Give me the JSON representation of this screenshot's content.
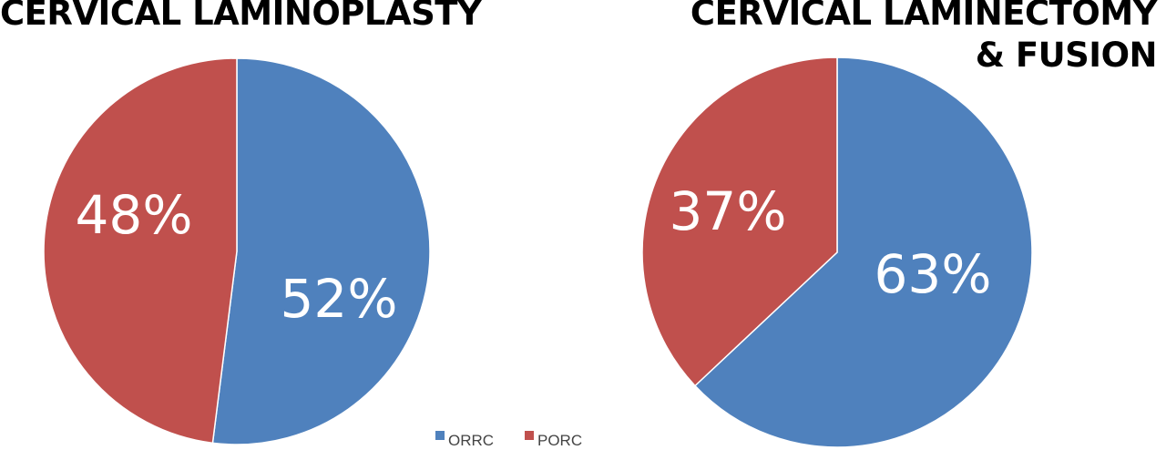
{
  "chart_data": [
    {
      "type": "pie",
      "title": "CERVICAL LAMINOPLASTY",
      "categories": [
        "ORRC",
        "PORC"
      ],
      "values": [
        52,
        48
      ],
      "data_labels": [
        "52%",
        "48%"
      ]
    },
    {
      "type": "pie",
      "title_lines": [
        "CERVICAL LAMINECTOMY",
        "& FUSION"
      ],
      "categories": [
        "ORRC",
        "PORC"
      ],
      "values": [
        63,
        37
      ],
      "data_labels": [
        "63%",
        "37%"
      ]
    }
  ],
  "legend": {
    "placement": "bottom-center",
    "items": [
      {
        "label": "ORRC",
        "color": "#4f81bd"
      },
      {
        "label": "PORC",
        "color": "#c0504d"
      }
    ]
  },
  "colors": {
    "ORRC": "#4f81bd",
    "PORC": "#c0504d",
    "slice_border": "#ffffff"
  }
}
